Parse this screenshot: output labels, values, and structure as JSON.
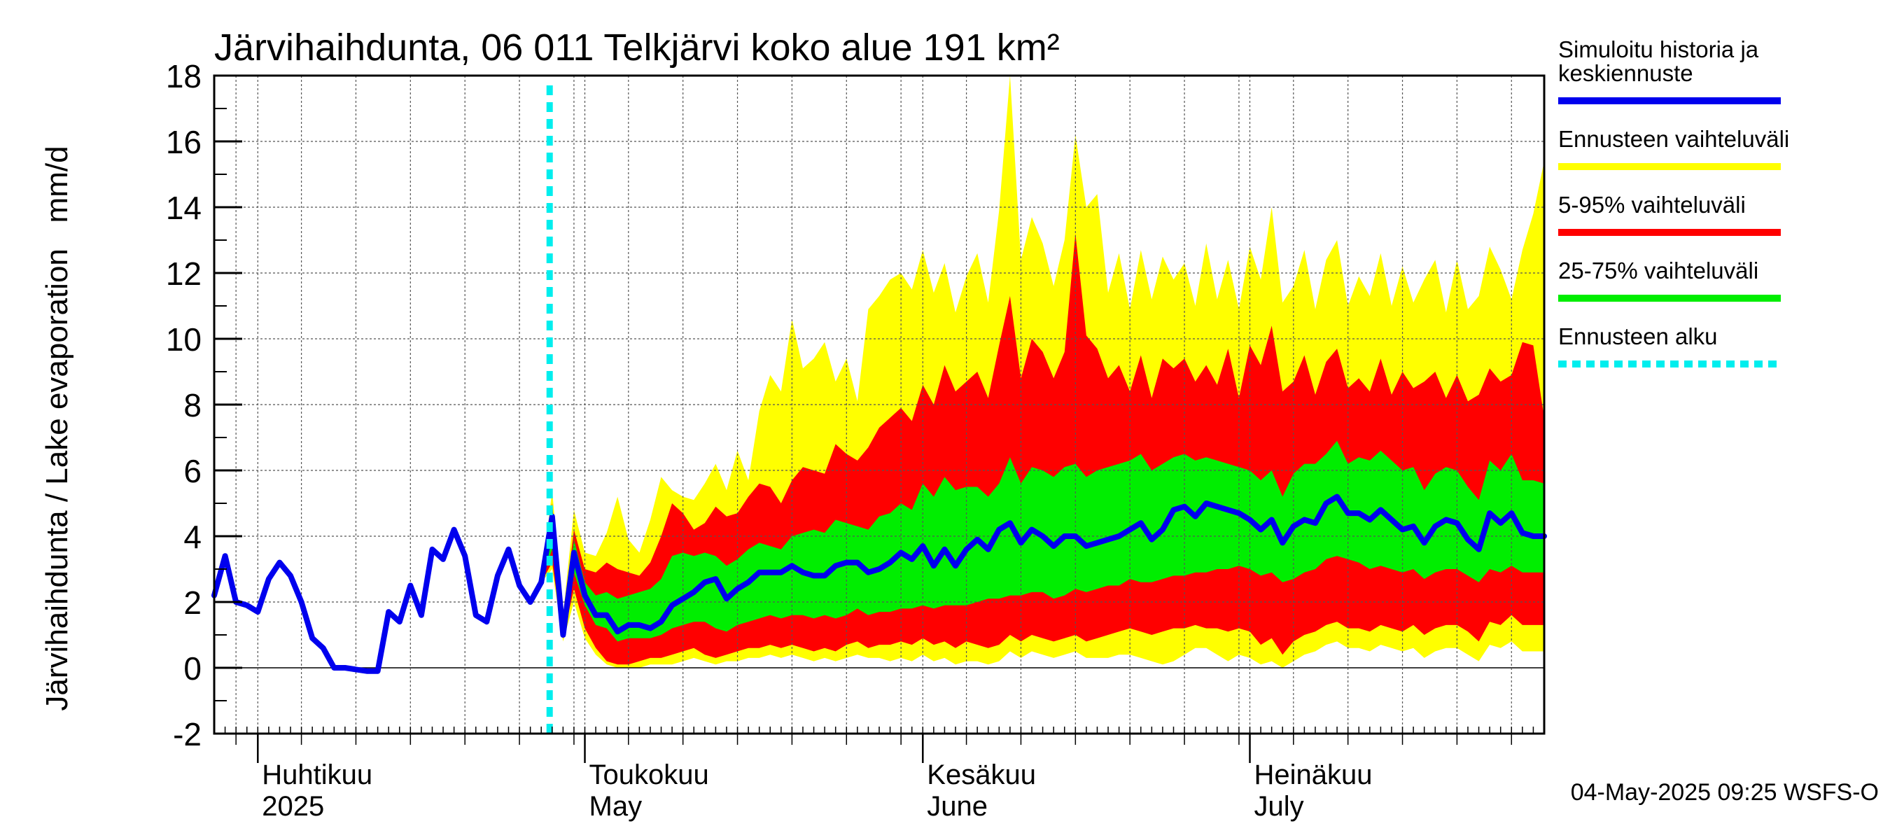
{
  "chart_data": {
    "type": "area",
    "title": "Järvihaihdunta, 06 011 Telkjärvi koko alue 191 km²",
    "ylabel": "Järvihaihdunta / Lake evaporation   mm/d",
    "ylim": [
      -2,
      18
    ],
    "xlim": [
      "2025-03-28",
      "2025-07-28"
    ],
    "yticks": [
      -2,
      0,
      2,
      4,
      6,
      8,
      10,
      12,
      14,
      16,
      18
    ],
    "grid": true,
    "legend_position": "right",
    "months": [
      {
        "fi": "Huhtikuu",
        "en": "2025",
        "start": "2025-04-01"
      },
      {
        "fi": "Toukokuu",
        "en": "May",
        "start": "2025-05-01"
      },
      {
        "fi": "Kesäkuu",
        "en": "June",
        "start": "2025-06-01"
      },
      {
        "fi": "Heinäkuu",
        "en": "July",
        "start": "2025-07-01"
      }
    ],
    "legend": [
      {
        "label": "Simuloitu historia ja keskiennuste",
        "lines": [
          "Simuloitu historia ja",
          "keskiennuste"
        ],
        "color": "#0000ee",
        "style": "line"
      },
      {
        "label": "Ennusteen vaihteluväli",
        "lines": [
          "Ennusteen vaihteluväli"
        ],
        "color": "#ffff00",
        "style": "line"
      },
      {
        "label": "5-95% vaihteluväli",
        "lines": [
          "5-95% vaihteluväli"
        ],
        "color": "#ff0000",
        "style": "line"
      },
      {
        "label": "25-75% vaihteluväli",
        "lines": [
          "25-75% vaihteluväli"
        ],
        "color": "#00ee00",
        "style": "line"
      },
      {
        "label": "Ennusteen alku",
        "lines": [
          "Ennusteen alku"
        ],
        "color": "#00eeee",
        "style": "dashed"
      }
    ],
    "forecast_start": "2025-04-27",
    "history": {
      "x": [
        "2025-03-28",
        "2025-03-29",
        "2025-03-30",
        "2025-03-31",
        "2025-04-01",
        "2025-04-02",
        "2025-04-03",
        "2025-04-04",
        "2025-04-05",
        "2025-04-06",
        "2025-04-07",
        "2025-04-08",
        "2025-04-09",
        "2025-04-10",
        "2025-04-11",
        "2025-04-12",
        "2025-04-13",
        "2025-04-14",
        "2025-04-15",
        "2025-04-16",
        "2025-04-17",
        "2025-04-18",
        "2025-04-19",
        "2025-04-20",
        "2025-04-21",
        "2025-04-22",
        "2025-04-23",
        "2025-04-24",
        "2025-04-25",
        "2025-04-26",
        "2025-04-27"
      ],
      "y": [
        2.2,
        3.4,
        2.0,
        1.9,
        1.7,
        2.7,
        3.2,
        2.8,
        2.0,
        0.9,
        0.6,
        0.0,
        0.0,
        -0.05,
        -0.1,
        -0.1,
        1.7,
        1.4,
        2.5,
        1.6,
        3.6,
        3.3,
        4.2,
        3.4,
        1.6,
        1.4,
        2.8,
        3.6,
        2.5,
        2.0,
        2.6
      ]
    },
    "forecast": {
      "x": [
        "2025-04-27",
        "2025-04-28",
        "2025-04-29",
        "2025-04-30",
        "2025-05-01",
        "2025-05-02",
        "2025-05-03",
        "2025-05-04",
        "2025-05-05",
        "2025-05-06",
        "2025-05-07",
        "2025-05-08",
        "2025-05-09",
        "2025-05-10",
        "2025-05-11",
        "2025-05-12",
        "2025-05-13",
        "2025-05-14",
        "2025-05-15",
        "2025-05-16",
        "2025-05-17",
        "2025-05-18",
        "2025-05-19",
        "2025-05-20",
        "2025-05-21",
        "2025-05-22",
        "2025-05-23",
        "2025-05-24",
        "2025-05-25",
        "2025-05-26",
        "2025-05-27",
        "2025-05-28",
        "2025-05-29",
        "2025-05-30",
        "2025-05-31",
        "2025-06-01",
        "2025-06-02",
        "2025-06-03",
        "2025-06-04",
        "2025-06-05",
        "2025-06-06",
        "2025-06-07",
        "2025-06-08",
        "2025-06-09",
        "2025-06-10",
        "2025-06-11",
        "2025-06-12",
        "2025-06-13",
        "2025-06-14",
        "2025-06-15",
        "2025-06-16",
        "2025-06-17",
        "2025-06-18",
        "2025-06-19",
        "2025-06-20",
        "2025-06-21",
        "2025-06-22",
        "2025-06-23",
        "2025-06-24",
        "2025-06-25",
        "2025-06-26",
        "2025-06-27",
        "2025-06-28",
        "2025-06-29",
        "2025-06-30",
        "2025-07-01",
        "2025-07-02",
        "2025-07-03",
        "2025-07-04",
        "2025-07-05",
        "2025-07-06",
        "2025-07-07",
        "2025-07-08",
        "2025-07-09",
        "2025-07-10",
        "2025-07-11",
        "2025-07-12",
        "2025-07-13",
        "2025-07-14",
        "2025-07-15",
        "2025-07-16",
        "2025-07-17",
        "2025-07-18",
        "2025-07-19",
        "2025-07-20",
        "2025-07-21",
        "2025-07-22",
        "2025-07-23",
        "2025-07-24",
        "2025-07-25",
        "2025-07-26",
        "2025-07-27",
        "2025-07-28"
      ],
      "mean": [
        2.6,
        4.6,
        1.0,
        3.5,
        2.2,
        1.6,
        1.6,
        1.1,
        1.3,
        1.3,
        1.2,
        1.4,
        1.9,
        2.1,
        2.3,
        2.6,
        2.7,
        2.1,
        2.4,
        2.6,
        2.9,
        2.9,
        2.9,
        3.1,
        2.9,
        2.8,
        2.8,
        3.1,
        3.2,
        3.2,
        2.9,
        3.0,
        3.2,
        3.5,
        3.3,
        3.7,
        3.1,
        3.6,
        3.1,
        3.6,
        3.9,
        3.6,
        4.2,
        4.4,
        3.8,
        4.2,
        4.0,
        3.7,
        4.0,
        4.0,
        3.7,
        3.8,
        3.9,
        4.0,
        4.2,
        4.4,
        3.9,
        4.2,
        4.8,
        4.9,
        4.6,
        5.0,
        4.9,
        4.8,
        4.7,
        4.5,
        4.2,
        4.5,
        3.8,
        4.3,
        4.5,
        4.4,
        5.0,
        5.2,
        4.7,
        4.7,
        4.5,
        4.8,
        4.5,
        4.2,
        4.3,
        3.8,
        4.3,
        4.5,
        4.4,
        3.9,
        3.6,
        4.7,
        4.4,
        4.7,
        4.1,
        4.0,
        4.0
      ],
      "p25": [
        2.6,
        3.6,
        1.0,
        2.9,
        1.9,
        1.3,
        1.2,
        0.8,
        0.9,
        0.9,
        0.9,
        1.0,
        1.2,
        1.3,
        1.4,
        1.4,
        1.2,
        1.1,
        1.3,
        1.4,
        1.5,
        1.6,
        1.5,
        1.6,
        1.6,
        1.5,
        1.6,
        1.5,
        1.6,
        1.8,
        1.6,
        1.7,
        1.7,
        1.8,
        1.8,
        1.9,
        1.8,
        1.9,
        1.9,
        1.9,
        2.0,
        2.1,
        2.1,
        2.2,
        2.2,
        2.3,
        2.3,
        2.1,
        2.2,
        2.4,
        2.3,
        2.4,
        2.5,
        2.5,
        2.7,
        2.6,
        2.6,
        2.7,
        2.8,
        2.8,
        2.9,
        2.9,
        3.0,
        3.0,
        3.1,
        3.0,
        2.8,
        2.9,
        2.6,
        2.7,
        2.9,
        3.0,
        3.3,
        3.4,
        3.3,
        3.2,
        3.0,
        3.1,
        3.0,
        2.9,
        3.0,
        2.7,
        2.9,
        3.0,
        3.0,
        2.8,
        2.6,
        3.0,
        2.9,
        3.1,
        2.9,
        2.9,
        2.9
      ],
      "p75": [
        2.6,
        4.7,
        1.2,
        3.9,
        2.6,
        2.2,
        2.3,
        2.1,
        2.2,
        2.3,
        2.4,
        2.7,
        3.4,
        3.5,
        3.4,
        3.5,
        3.4,
        3.1,
        3.3,
        3.6,
        3.8,
        3.7,
        3.6,
        4.0,
        4.1,
        4.2,
        4.1,
        4.5,
        4.4,
        4.3,
        4.2,
        4.6,
        4.7,
        5.0,
        4.8,
        5.6,
        5.2,
        5.8,
        5.4,
        5.5,
        5.5,
        5.2,
        5.6,
        6.4,
        5.6,
        6.1,
        6.0,
        5.8,
        6.1,
        6.2,
        5.8,
        6.0,
        6.1,
        6.2,
        6.3,
        6.5,
        6.0,
        6.2,
        6.4,
        6.5,
        6.3,
        6.4,
        6.3,
        6.2,
        6.1,
        6.0,
        5.7,
        6.0,
        5.2,
        5.9,
        6.2,
        6.2,
        6.5,
        6.9,
        6.2,
        6.4,
        6.3,
        6.6,
        6.3,
        6.0,
        6.1,
        5.4,
        5.9,
        6.1,
        6.0,
        5.5,
        5.1,
        6.3,
        6.0,
        6.5,
        5.7,
        5.7,
        5.6
      ],
      "p05": [
        2.6,
        3.2,
        0.9,
        2.4,
        1.2,
        0.6,
        0.2,
        0.1,
        0.1,
        0.2,
        0.3,
        0.3,
        0.4,
        0.5,
        0.6,
        0.4,
        0.3,
        0.4,
        0.5,
        0.6,
        0.6,
        0.7,
        0.6,
        0.7,
        0.6,
        0.5,
        0.6,
        0.5,
        0.7,
        0.8,
        0.6,
        0.7,
        0.7,
        0.8,
        0.7,
        0.9,
        0.7,
        0.8,
        0.6,
        0.8,
        0.7,
        0.6,
        0.7,
        1.0,
        0.8,
        1.0,
        0.9,
        0.8,
        0.9,
        1.0,
        0.8,
        0.9,
        1.0,
        1.1,
        1.2,
        1.1,
        1.0,
        1.1,
        1.2,
        1.2,
        1.3,
        1.2,
        1.2,
        1.1,
        1.2,
        1.1,
        0.7,
        0.9,
        0.4,
        0.8,
        1.0,
        1.1,
        1.3,
        1.4,
        1.2,
        1.2,
        1.1,
        1.3,
        1.2,
        1.1,
        1.3,
        1.0,
        1.2,
        1.3,
        1.3,
        1.1,
        0.8,
        1.4,
        1.3,
        1.6,
        1.3,
        1.3,
        1.3
      ],
      "p95": [
        2.6,
        5.0,
        1.4,
        4.2,
        3.0,
        2.9,
        3.2,
        3.0,
        2.9,
        2.8,
        3.2,
        4.0,
        5.0,
        4.7,
        4.2,
        4.4,
        4.9,
        4.6,
        4.7,
        5.2,
        5.6,
        5.5,
        5.0,
        5.7,
        6.1,
        6.0,
        5.9,
        6.8,
        6.5,
        6.3,
        6.7,
        7.3,
        7.6,
        7.9,
        7.5,
        8.6,
        8.0,
        9.2,
        8.4,
        8.7,
        9.0,
        8.2,
        9.8,
        11.3,
        8.8,
        10.0,
        9.6,
        8.8,
        9.6,
        13.2,
        10.1,
        9.7,
        8.8,
        9.2,
        8.4,
        9.5,
        8.2,
        9.4,
        9.1,
        9.4,
        8.7,
        9.2,
        8.6,
        9.7,
        8.2,
        9.8,
        9.2,
        10.4,
        8.4,
        8.7,
        9.5,
        8.3,
        9.3,
        9.7,
        8.5,
        8.8,
        8.4,
        9.4,
        8.3,
        9.0,
        8.5,
        8.7,
        9.0,
        8.2,
        8.9,
        8.1,
        8.3,
        9.1,
        8.7,
        8.9,
        9.9,
        9.8,
        7.6
      ],
      "min": [
        2.6,
        3.0,
        0.8,
        2.0,
        0.9,
        0.4,
        0.1,
        0.0,
        0.0,
        0.0,
        0.1,
        0.1,
        0.1,
        0.2,
        0.3,
        0.2,
        0.1,
        0.2,
        0.2,
        0.3,
        0.3,
        0.4,
        0.3,
        0.4,
        0.3,
        0.2,
        0.3,
        0.2,
        0.3,
        0.4,
        0.3,
        0.3,
        0.2,
        0.3,
        0.2,
        0.4,
        0.2,
        0.3,
        0.1,
        0.2,
        0.2,
        0.1,
        0.2,
        0.5,
        0.3,
        0.5,
        0.4,
        0.3,
        0.4,
        0.5,
        0.3,
        0.3,
        0.3,
        0.4,
        0.4,
        0.3,
        0.2,
        0.1,
        0.2,
        0.4,
        0.6,
        0.6,
        0.4,
        0.2,
        0.4,
        0.3,
        0.1,
        0.2,
        0.0,
        0.2,
        0.4,
        0.5,
        0.7,
        0.8,
        0.6,
        0.6,
        0.5,
        0.7,
        0.6,
        0.5,
        0.6,
        0.3,
        0.5,
        0.6,
        0.6,
        0.4,
        0.2,
        0.7,
        0.6,
        0.8,
        0.5,
        0.5,
        0.5
      ],
      "max": [
        2.6,
        5.4,
        1.6,
        4.8,
        3.5,
        3.4,
        4.1,
        5.2,
        3.9,
        3.5,
        4.5,
        5.8,
        5.4,
        5.2,
        5.1,
        5.6,
        6.2,
        5.4,
        6.6,
        5.7,
        7.8,
        8.9,
        8.4,
        10.6,
        9.1,
        9.4,
        9.9,
        8.7,
        9.4,
        8.1,
        10.9,
        11.3,
        11.8,
        12.0,
        11.5,
        12.7,
        11.4,
        12.3,
        10.8,
        11.9,
        12.6,
        11.1,
        13.9,
        18.0,
        12.4,
        13.7,
        12.9,
        11.6,
        13.0,
        16.2,
        14.0,
        14.4,
        11.4,
        12.6,
        10.9,
        12.7,
        11.2,
        12.5,
        11.8,
        12.3,
        11.0,
        12.9,
        11.2,
        12.4,
        10.9,
        12.8,
        11.8,
        14.0,
        11.1,
        11.6,
        12.7,
        10.9,
        12.4,
        13.0,
        11.0,
        11.9,
        11.3,
        12.6,
        11.0,
        12.2,
        11.1,
        11.8,
        12.4,
        10.8,
        12.4,
        10.9,
        11.3,
        12.8,
        12.1,
        11.2,
        12.7,
        13.8,
        15.4
      ]
    },
    "footer": "04-May-2025 09:25 WSFS-O"
  }
}
